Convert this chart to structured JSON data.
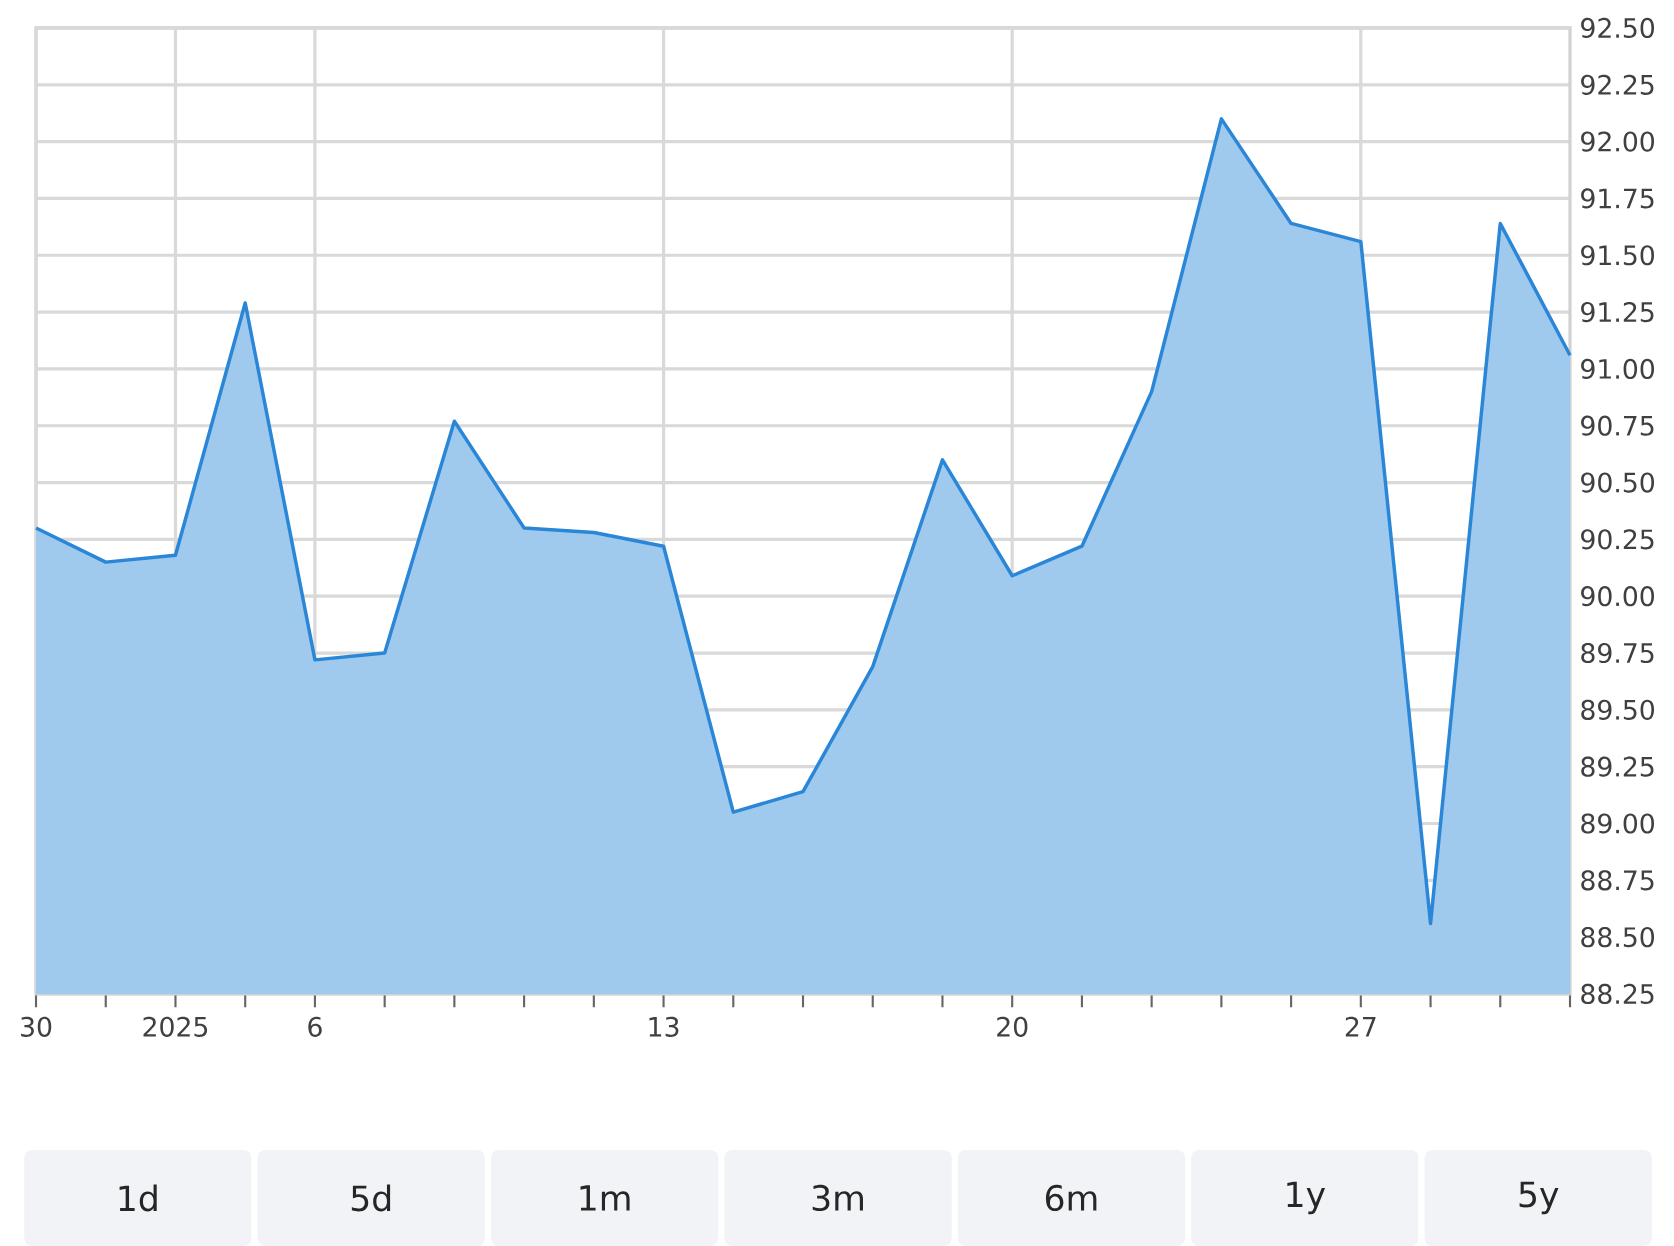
{
  "chart_data": {
    "type": "area",
    "categories": [
      "30",
      null,
      "2025",
      null,
      "6",
      null,
      null,
      null,
      null,
      "13",
      null,
      null,
      null,
      null,
      "20",
      null,
      null,
      null,
      null,
      "27",
      null,
      null,
      null
    ],
    "series": [
      {
        "color": "#2a86d6",
        "values": [
          90.3,
          90.15,
          90.18,
          91.29,
          89.72,
          89.75,
          90.77,
          90.3,
          90.28,
          90.22,
          89.05,
          89.14,
          89.69,
          90.6,
          90.09,
          90.22,
          90.9,
          92.1,
          91.64,
          91.56,
          88.56,
          91.64,
          91.06
        ]
      }
    ],
    "ylim": [
      88.25,
      92.5
    ],
    "yticks": [
      {
        "value": 88.25,
        "label": "88.25"
      },
      {
        "value": 88.5,
        "label": "88.50"
      },
      {
        "value": 88.75,
        "label": "88.75"
      },
      {
        "value": 89,
        "label": "89.00"
      },
      {
        "value": 89.25,
        "label": "89.25"
      },
      {
        "value": 89.5,
        "label": "89.50"
      },
      {
        "value": 89.75,
        "label": "89.75"
      },
      {
        "value": 90,
        "label": "90.00"
      },
      {
        "value": 90.25,
        "label": "90.25"
      },
      {
        "value": 90.5,
        "label": "90.50"
      },
      {
        "value": 90.75,
        "label": "90.75"
      },
      {
        "value": 91,
        "label": "91.00"
      },
      {
        "value": 91.25,
        "label": "91.25"
      },
      {
        "value": 91.5,
        "label": "91.50"
      },
      {
        "value": 91.75,
        "label": "91.75"
      },
      {
        "value": 92,
        "label": "92.00"
      },
      {
        "value": 92.25,
        "label": "92.25"
      },
      {
        "value": 92.5,
        "label": "92.50"
      }
    ],
    "grid": true,
    "annotations": [
      "1d",
      "5d",
      "1m",
      "3m",
      "6m",
      "1y",
      "5y"
    ]
  }
}
